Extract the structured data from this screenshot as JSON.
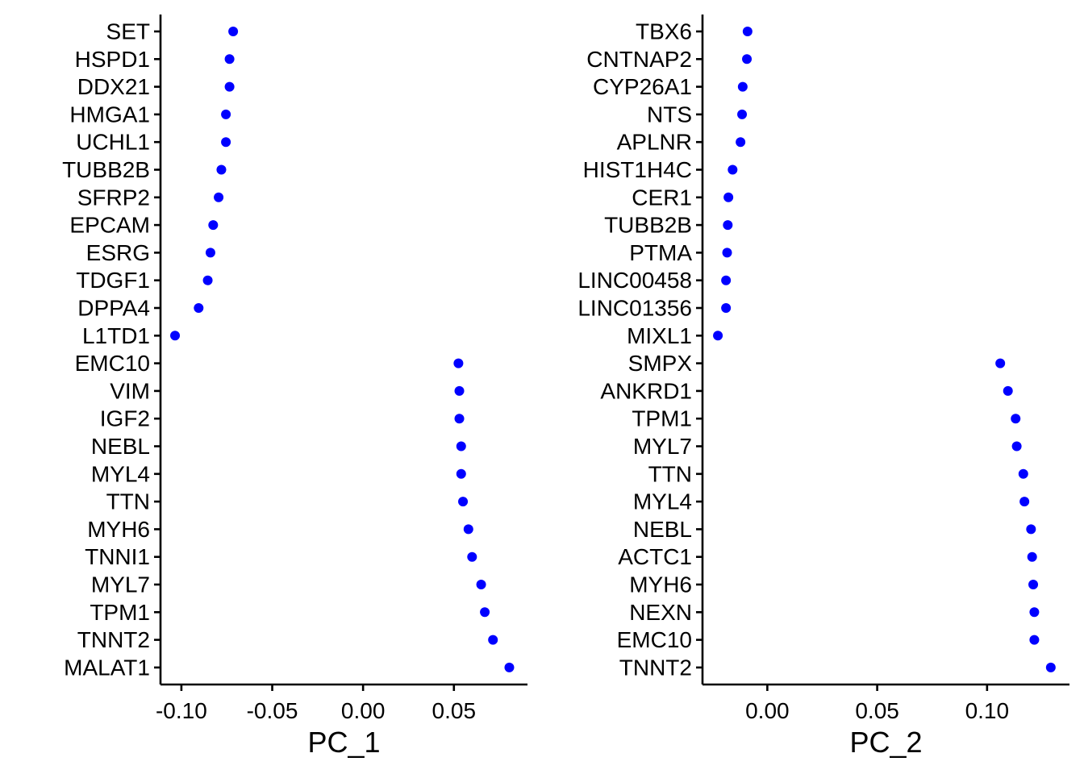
{
  "chart_data": [
    {
      "type": "scatter",
      "xlabel": "PC_1",
      "ylabel": "",
      "title": "",
      "xlim": [
        -0.1115,
        0.0905
      ],
      "x_ticks": [
        -0.1,
        -0.05,
        0.0,
        0.05
      ],
      "x_tick_labels": [
        "-0.10",
        "-0.05",
        "0.00",
        "0.05"
      ],
      "grid": false,
      "point_color": "#0000FF",
      "genes": [
        "SET",
        "HSPD1",
        "DDX21",
        "HMGA1",
        "UCHL1",
        "TUBB2B",
        "SFRP2",
        "EPCAM",
        "ESRG",
        "TDGF1",
        "DPPA4",
        "L1TD1",
        "EMC10",
        "VIM",
        "IGF2",
        "NEBL",
        "MYL4",
        "TTN",
        "MYH6",
        "TNNI1",
        "MYL7",
        "TPM1",
        "TNNT2",
        "MALAT1"
      ],
      "values": [
        -0.0715,
        -0.0735,
        -0.0735,
        -0.0755,
        -0.0755,
        -0.078,
        -0.0795,
        -0.0825,
        -0.084,
        -0.0855,
        -0.0905,
        -0.1035,
        0.0525,
        0.053,
        0.053,
        0.054,
        0.054,
        0.055,
        0.058,
        0.06,
        0.065,
        0.067,
        0.0715,
        0.0805
      ]
    },
    {
      "type": "scatter",
      "xlabel": "PC_2",
      "ylabel": "",
      "title": "",
      "xlim": [
        -0.0295,
        0.1375
      ],
      "x_ticks": [
        0.0,
        0.05,
        0.1
      ],
      "x_tick_labels": [
        "0.00",
        "0.05",
        "0.10"
      ],
      "grid": false,
      "point_color": "#0000FF",
      "genes": [
        "TBX6",
        "CNTNAP2",
        "CYP26A1",
        "NTS",
        "APLNR",
        "HIST1H4C",
        "CER1",
        "TUBB2B",
        "PTMA",
        "LINC00458",
        "LINC01356",
        "MIXL1",
        "SMPX",
        "ANKRD1",
        "TPM1",
        "MYL7",
        "TTN",
        "MYL4",
        "NEBL",
        "ACTC1",
        "MYH6",
        "NEXN",
        "EMC10",
        "TNNT2"
      ],
      "values": [
        -0.009,
        -0.0093,
        -0.0112,
        -0.0115,
        -0.0122,
        -0.0158,
        -0.0177,
        -0.018,
        -0.0183,
        -0.0188,
        -0.0188,
        -0.0225,
        0.106,
        0.1095,
        0.113,
        0.1135,
        0.1165,
        0.117,
        0.12,
        0.1205,
        0.121,
        0.1215,
        0.1215,
        0.129
      ]
    }
  ]
}
